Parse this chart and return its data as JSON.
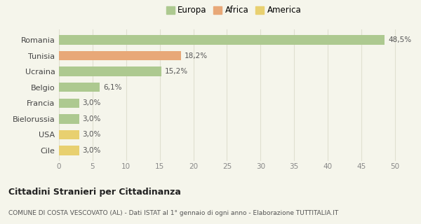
{
  "categories": [
    "Cile",
    "USA",
    "Bielorussia",
    "Francia",
    "Belgio",
    "Ucraina",
    "Tunisia",
    "Romania"
  ],
  "values": [
    3.0,
    3.0,
    3.0,
    3.0,
    6.1,
    15.2,
    18.2,
    48.5
  ],
  "labels": [
    "3,0%",
    "3,0%",
    "3,0%",
    "3,0%",
    "6,1%",
    "15,2%",
    "18,2%",
    "48,5%"
  ],
  "colors": [
    "#e8d070",
    "#e8d070",
    "#adc990",
    "#adc990",
    "#adc990",
    "#adc990",
    "#e8a878",
    "#adc990"
  ],
  "legend_items": [
    {
      "label": "Europa",
      "color": "#adc990"
    },
    {
      "label": "Africa",
      "color": "#e8a878"
    },
    {
      "label": "America",
      "color": "#e8d070"
    }
  ],
  "xlim": [
    0,
    52
  ],
  "xticks": [
    0,
    5,
    10,
    15,
    20,
    25,
    30,
    35,
    40,
    45,
    50
  ],
  "title": "Cittadini Stranieri per Cittadinanza",
  "subtitle": "COMUNE DI COSTA VESCOVATO (AL) - Dati ISTAT al 1° gennaio di ogni anno - Elaborazione TUTTITALIA.IT",
  "bg_color": "#f5f5eb",
  "grid_color": "#e0e0d0",
  "bar_height": 0.6,
  "label_fontsize": 7.5,
  "ytick_fontsize": 8,
  "xtick_fontsize": 7.5,
  "legend_fontsize": 8.5,
  "title_fontsize": 9,
  "subtitle_fontsize": 6.5
}
